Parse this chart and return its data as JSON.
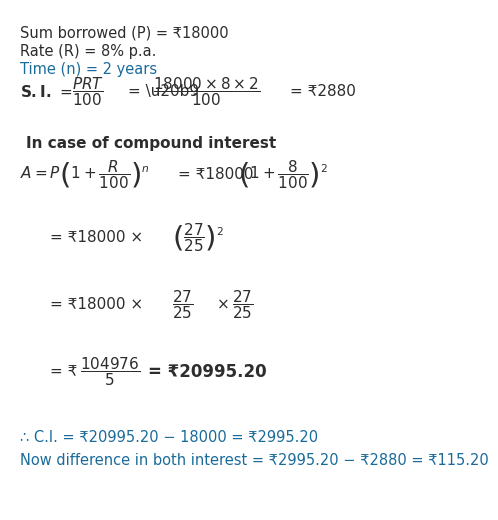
{
  "bg_color": "#ffffff",
  "text_color_black": "#2d2d2d",
  "text_color_blue": "#1a6b9a",
  "line1": "Sum borrowed (P) = ₹18000",
  "line2": "Rate (R) = 8% p.a.",
  "line3": "Time (n) = 2 years",
  "compound_header": "In case of compound interest",
  "conclusion1": "∴ C.I. = ₹20995.20 − 18000 = ₹2995.20",
  "conclusion2": "Now difference in both interest = ₹2995.20 − ₹2880 = ₹115.20"
}
